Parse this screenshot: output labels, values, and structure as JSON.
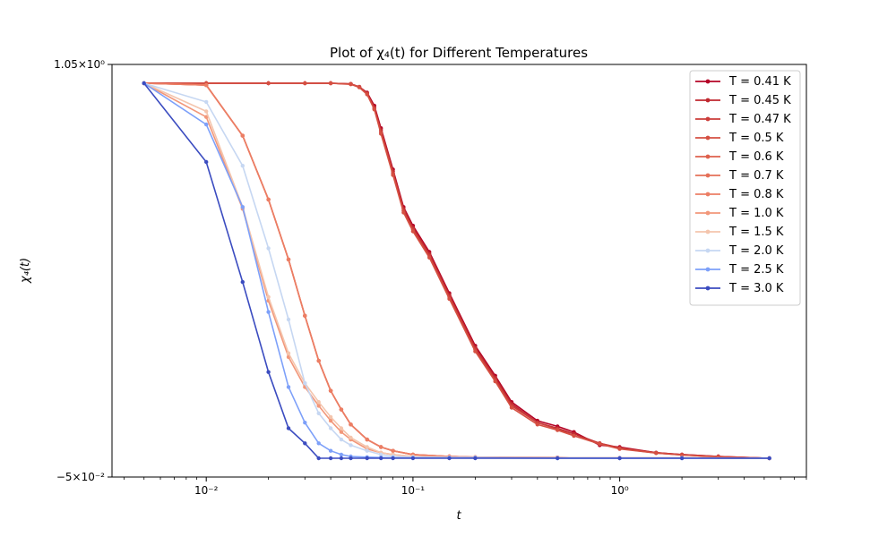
{
  "chart_data": {
    "type": "line",
    "title": "Plot of χ₄(t) for Different Temperatures",
    "xlabel": "t",
    "ylabel": "χ₄(t)",
    "xscale": "log",
    "xlim": [
      0.0035,
      8.0
    ],
    "ylim": [
      -0.05,
      1.05
    ],
    "xtick_values": [
      0.01,
      0.1,
      1.0
    ],
    "xtick_labels": [
      "10⁻²",
      "10⁻¹",
      "10⁰"
    ],
    "ytick_values": [
      1.05,
      -0.05
    ],
    "ytick_labels": [
      "1.05×10⁰",
      "−5×10⁻²"
    ],
    "grid": false,
    "legend_position": "top-right",
    "series": [
      {
        "name": "T = 0.41 K",
        "color": "#b40426",
        "x": [
          0.005,
          0.01,
          0.02,
          0.03,
          0.04,
          0.05,
          0.055,
          0.06,
          0.065,
          0.07,
          0.08,
          0.09,
          0.1,
          0.12,
          0.15,
          0.2,
          0.25,
          0.3,
          0.4,
          0.5,
          0.6,
          0.8,
          1.0,
          1.5,
          2.0,
          3.0,
          5.3
        ],
        "y": [
          1.0,
          1.0,
          1.0,
          1.0,
          1.0,
          0.998,
          0.99,
          0.975,
          0.94,
          0.88,
          0.77,
          0.67,
          0.62,
          0.55,
          0.44,
          0.3,
          0.22,
          0.15,
          0.1,
          0.085,
          0.07,
          0.035,
          0.03,
          0.015,
          0.01,
          0.005,
          0.0
        ]
      },
      {
        "name": "T = 0.45 K",
        "color": "#c0282f",
        "x": [
          0.005,
          0.01,
          0.02,
          0.03,
          0.04,
          0.05,
          0.055,
          0.06,
          0.065,
          0.07,
          0.08,
          0.09,
          0.1,
          0.12,
          0.15,
          0.2,
          0.25,
          0.3,
          0.4,
          0.5,
          0.6,
          0.8,
          1.0,
          1.5,
          2.0,
          3.0,
          5.3
        ],
        "y": [
          1.0,
          1.0,
          1.0,
          1.0,
          1.0,
          0.998,
          0.99,
          0.973,
          0.935,
          0.875,
          0.765,
          0.665,
          0.615,
          0.545,
          0.435,
          0.295,
          0.215,
          0.145,
          0.095,
          0.08,
          0.065,
          0.04,
          0.028,
          0.015,
          0.01,
          0.005,
          0.0
        ]
      },
      {
        "name": "T = 0.47 K",
        "color": "#cc3d3a",
        "x": [
          0.005,
          0.01,
          0.02,
          0.03,
          0.04,
          0.05,
          0.055,
          0.06,
          0.065,
          0.07,
          0.08,
          0.09,
          0.1,
          0.12,
          0.15,
          0.2,
          0.25,
          0.3,
          0.4,
          0.5,
          0.6,
          0.8,
          1.0,
          1.5,
          2.0,
          3.0,
          5.3
        ],
        "y": [
          1.0,
          1.0,
          1.0,
          1.0,
          1.0,
          0.998,
          0.99,
          0.972,
          0.932,
          0.87,
          0.76,
          0.66,
          0.61,
          0.54,
          0.43,
          0.29,
          0.21,
          0.14,
          0.095,
          0.078,
          0.06,
          0.04,
          0.026,
          0.014,
          0.009,
          0.004,
          0.0
        ]
      },
      {
        "name": "T = 0.5 K",
        "color": "#d55042",
        "x": [
          0.005,
          0.01,
          0.02,
          0.03,
          0.04,
          0.05,
          0.055,
          0.06,
          0.065,
          0.07,
          0.08,
          0.09,
          0.1,
          0.12,
          0.15,
          0.2,
          0.25,
          0.3,
          0.4,
          0.5,
          0.6,
          0.8,
          1.0,
          1.5,
          2.0,
          3.0,
          5.3
        ],
        "y": [
          1.0,
          1.0,
          1.0,
          1.0,
          1.0,
          0.997,
          0.989,
          0.97,
          0.93,
          0.865,
          0.755,
          0.655,
          0.605,
          0.535,
          0.425,
          0.285,
          0.205,
          0.135,
          0.09,
          0.075,
          0.06,
          0.038,
          0.025,
          0.014,
          0.009,
          0.004,
          0.0
        ]
      },
      {
        "name": "T = 0.6 K",
        "color": "#de614d",
        "x": [
          0.005,
          0.01,
          0.015,
          0.02,
          0.025,
          0.03,
          0.035,
          0.04,
          0.045,
          0.05,
          0.06,
          0.07,
          0.08,
          0.1,
          0.15,
          0.2,
          0.5,
          1.0,
          2.0,
          5.3
        ],
        "y": [
          1.0,
          0.995,
          0.86,
          0.69,
          0.53,
          0.38,
          0.26,
          0.18,
          0.13,
          0.09,
          0.05,
          0.03,
          0.02,
          0.01,
          0.005,
          0.003,
          0.002,
          0.001,
          0.001,
          0.0
        ]
      },
      {
        "name": "T = 0.7 K",
        "color": "#e57058",
        "x": [
          0.005,
          0.01,
          0.015,
          0.02,
          0.025,
          0.03,
          0.035,
          0.04,
          0.045,
          0.05,
          0.06,
          0.07,
          0.08,
          0.1,
          0.15,
          0.2,
          0.5,
          1.0,
          2.0,
          5.3
        ],
        "y": [
          1.0,
          0.995,
          0.86,
          0.69,
          0.53,
          0.38,
          0.26,
          0.18,
          0.13,
          0.09,
          0.05,
          0.03,
          0.02,
          0.01,
          0.005,
          0.003,
          0.002,
          0.001,
          0.001,
          0.0
        ]
      },
      {
        "name": "T = 0.8 K",
        "color": "#ec7e64",
        "x": [
          0.005,
          0.01,
          0.015,
          0.02,
          0.025,
          0.03,
          0.035,
          0.04,
          0.045,
          0.05,
          0.06,
          0.07,
          0.08,
          0.1,
          0.15,
          0.2,
          0.5,
          1.0,
          2.0,
          5.3
        ],
        "y": [
          1.0,
          0.995,
          0.86,
          0.69,
          0.53,
          0.38,
          0.26,
          0.18,
          0.13,
          0.09,
          0.05,
          0.03,
          0.02,
          0.01,
          0.005,
          0.003,
          0.002,
          0.001,
          0.001,
          0.0
        ]
      },
      {
        "name": "T = 1.0 K",
        "color": "#f2977a",
        "x": [
          0.005,
          0.01,
          0.015,
          0.02,
          0.025,
          0.03,
          0.035,
          0.04,
          0.045,
          0.05,
          0.06,
          0.07,
          0.08,
          0.1,
          0.15,
          0.2,
          0.5,
          1.0,
          2.0,
          5.3
        ],
        "y": [
          1.0,
          0.91,
          0.665,
          0.42,
          0.27,
          0.19,
          0.14,
          0.1,
          0.07,
          0.05,
          0.025,
          0.015,
          0.01,
          0.005,
          0.003,
          0.002,
          0.001,
          0.001,
          0.001,
          0.0
        ]
      },
      {
        "name": "T = 1.5 K",
        "color": "#f4c5ad",
        "x": [
          0.005,
          0.01,
          0.015,
          0.02,
          0.025,
          0.03,
          0.035,
          0.04,
          0.045,
          0.05,
          0.06,
          0.07,
          0.08,
          0.1,
          0.15,
          0.2,
          0.5,
          1.0,
          2.0,
          5.3
        ],
        "y": [
          1.0,
          0.925,
          0.67,
          0.43,
          0.28,
          0.2,
          0.15,
          0.11,
          0.08,
          0.055,
          0.03,
          0.015,
          0.01,
          0.005,
          0.003,
          0.002,
          0.001,
          0.001,
          0.001,
          0.0
        ]
      },
      {
        "name": "T = 2.0 K",
        "color": "#c6d7f2",
        "x": [
          0.005,
          0.01,
          0.015,
          0.02,
          0.025,
          0.03,
          0.035,
          0.04,
          0.045,
          0.05,
          0.06,
          0.07,
          0.08,
          0.1,
          0.15,
          0.2,
          0.5,
          1.0,
          2.0,
          5.3
        ],
        "y": [
          1.0,
          0.95,
          0.78,
          0.56,
          0.37,
          0.2,
          0.12,
          0.08,
          0.05,
          0.035,
          0.02,
          0.01,
          0.005,
          0.003,
          0.002,
          0.002,
          0.001,
          0.001,
          0.001,
          0.0
        ]
      },
      {
        "name": "T = 2.5 K",
        "color": "#7da0f9",
        "x": [
          0.005,
          0.01,
          0.015,
          0.02,
          0.025,
          0.03,
          0.035,
          0.04,
          0.045,
          0.05,
          0.06,
          0.07,
          0.08,
          0.1,
          0.15,
          0.2,
          0.5,
          1.0,
          2.0,
          5.3
        ],
        "y": [
          1.0,
          0.89,
          0.67,
          0.39,
          0.19,
          0.095,
          0.04,
          0.02,
          0.01,
          0.005,
          0.003,
          0.002,
          0.001,
          0.001,
          0.001,
          0.001,
          0.0,
          0.0,
          0.0,
          0.0
        ]
      },
      {
        "name": "T = 3.0 K",
        "color": "#3b4cc0",
        "x": [
          0.005,
          0.01,
          0.015,
          0.02,
          0.025,
          0.03,
          0.035,
          0.04,
          0.045,
          0.05,
          0.06,
          0.07,
          0.08,
          0.1,
          0.15,
          0.2,
          0.5,
          1.0,
          2.0,
          5.3
        ],
        "y": [
          1.0,
          0.79,
          0.47,
          0.23,
          0.08,
          0.04,
          0.0,
          0.0,
          0.0,
          0.0,
          0.0,
          0.0,
          0.0,
          0.0,
          0.0,
          0.0,
          0.0,
          0.0,
          0.0,
          0.0
        ]
      }
    ]
  }
}
